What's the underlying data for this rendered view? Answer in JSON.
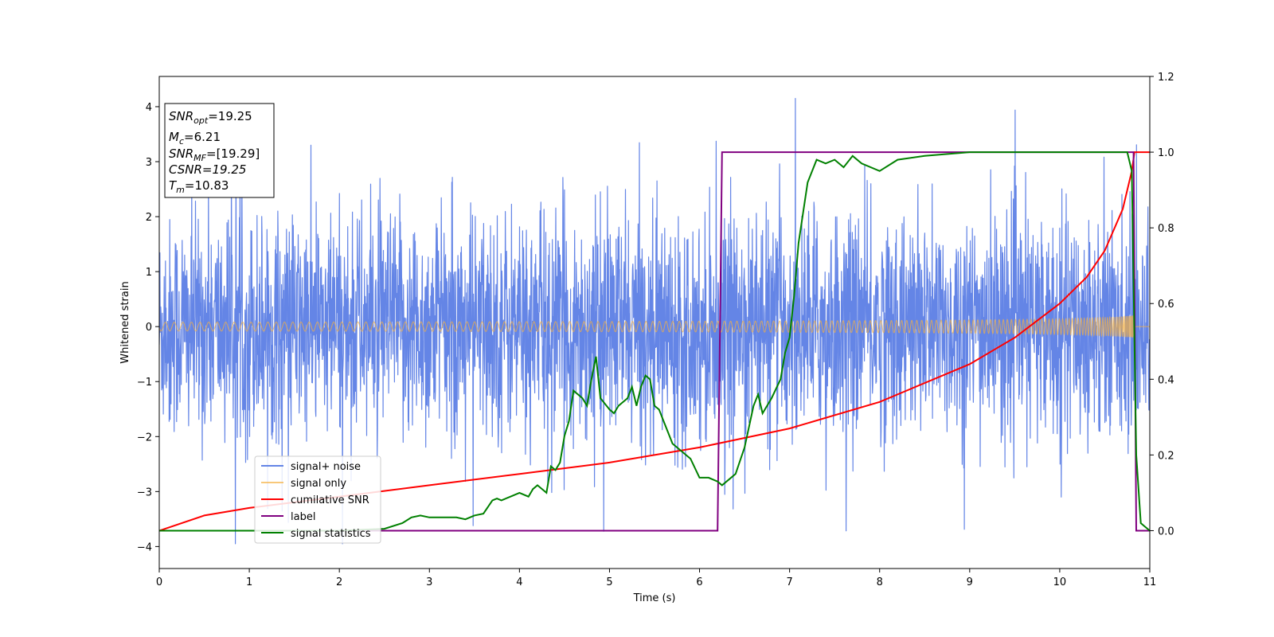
{
  "chart_data": {
    "type": "line",
    "xlabel": "Time (s)",
    "ylabel": "Whitened strain",
    "xlim": [
      0,
      11
    ],
    "ylim_left": [
      -4.4,
      4.55
    ],
    "ylim_right": [
      -0.1,
      1.2
    ],
    "x_ticks": [
      0,
      1,
      2,
      3,
      4,
      5,
      6,
      7,
      8,
      9,
      10,
      11
    ],
    "y_ticks_left": [
      -4,
      -3,
      -2,
      -1,
      0,
      1,
      2,
      3,
      4
    ],
    "y_ticks_right": [
      "0.0",
      "0.2",
      "0.4",
      "0.6",
      "0.8",
      "1.0",
      "1.2"
    ],
    "y_tick_values_right": [
      0.0,
      0.2,
      0.4,
      0.6,
      0.8,
      1.0,
      1.2
    ],
    "grid": false,
    "legend_position": "lower-left",
    "colors": {
      "noise": "#6485e6",
      "signal": "#f5b041",
      "snr": "#ff0000",
      "label": "#800080",
      "stats": "#008000"
    },
    "info_box": {
      "snr_opt": "=19.25",
      "mc": "=6.21",
      "snr_mf": "=[19.29]",
      "csnr": "CSNR=19.25",
      "tm": "=10.83"
    },
    "series": [
      {
        "name": "signal+ noise",
        "axis": "left",
        "description_amplitude_range": [
          -3.95,
          4.15
        ],
        "typical_std": 1.0
      },
      {
        "name": "signal only",
        "axis": "left",
        "envelope_start": 0.08,
        "envelope_end": 1.25,
        "t_merge": 10.83
      },
      {
        "name": "cumilative SNR",
        "axis": "right",
        "x": [
          0.0,
          0.5,
          1.0,
          2.0,
          3.0,
          4.0,
          5.0,
          6.0,
          7.0,
          8.0,
          9.0,
          9.5,
          10.0,
          10.3,
          10.5,
          10.7,
          10.8,
          10.83,
          11.0
        ],
        "y": [
          0.0,
          0.04,
          0.06,
          0.09,
          0.12,
          0.15,
          0.18,
          0.22,
          0.27,
          0.34,
          0.44,
          0.51,
          0.6,
          0.67,
          0.74,
          0.85,
          0.95,
          1.0,
          1.0
        ]
      },
      {
        "name": "label",
        "axis": "right",
        "x": [
          0.0,
          6.2,
          6.25,
          10.8,
          10.82,
          10.85,
          11.0
        ],
        "y": [
          0.0,
          0.0,
          1.0,
          1.0,
          1.0,
          0.0,
          0.0
        ]
      },
      {
        "name": "signal statistics",
        "axis": "right",
        "x": [
          0.0,
          0.5,
          1.0,
          1.5,
          2.0,
          2.5,
          2.7,
          2.8,
          2.9,
          3.0,
          3.1,
          3.3,
          3.4,
          3.5,
          3.6,
          3.7,
          3.75,
          3.8,
          3.9,
          4.0,
          4.1,
          4.15,
          4.2,
          4.3,
          4.35,
          4.4,
          4.45,
          4.5,
          4.55,
          4.6,
          4.7,
          4.75,
          4.8,
          4.85,
          4.9,
          5.0,
          5.05,
          5.1,
          5.2,
          5.25,
          5.3,
          5.35,
          5.4,
          5.45,
          5.5,
          5.55,
          5.6,
          5.7,
          5.8,
          5.9,
          6.0,
          6.1,
          6.2,
          6.25,
          6.3,
          6.4,
          6.5,
          6.6,
          6.65,
          6.7,
          6.8,
          6.9,
          6.95,
          7.0,
          7.05,
          7.1,
          7.2,
          7.3,
          7.4,
          7.5,
          7.6,
          7.7,
          7.8,
          8.0,
          8.2,
          8.5,
          9.0,
          9.5,
          10.0,
          10.5,
          10.7,
          10.75,
          10.8,
          10.85,
          10.9,
          11.0
        ],
        "y": [
          0.0,
          0.0,
          0.0,
          0.0,
          0.0,
          0.005,
          0.02,
          0.035,
          0.04,
          0.035,
          0.035,
          0.035,
          0.03,
          0.04,
          0.045,
          0.08,
          0.085,
          0.08,
          0.09,
          0.1,
          0.09,
          0.11,
          0.12,
          0.1,
          0.17,
          0.16,
          0.18,
          0.25,
          0.29,
          0.37,
          0.35,
          0.33,
          0.4,
          0.46,
          0.35,
          0.32,
          0.31,
          0.33,
          0.35,
          0.38,
          0.33,
          0.38,
          0.41,
          0.4,
          0.33,
          0.32,
          0.29,
          0.23,
          0.21,
          0.19,
          0.14,
          0.14,
          0.13,
          0.12,
          0.13,
          0.15,
          0.22,
          0.33,
          0.36,
          0.31,
          0.35,
          0.4,
          0.47,
          0.51,
          0.62,
          0.76,
          0.92,
          0.98,
          0.97,
          0.98,
          0.96,
          0.99,
          0.97,
          0.95,
          0.98,
          0.99,
          1.0,
          1.0,
          1.0,
          1.0,
          1.0,
          1.0,
          0.95,
          0.2,
          0.02,
          0.0
        ]
      }
    ]
  }
}
